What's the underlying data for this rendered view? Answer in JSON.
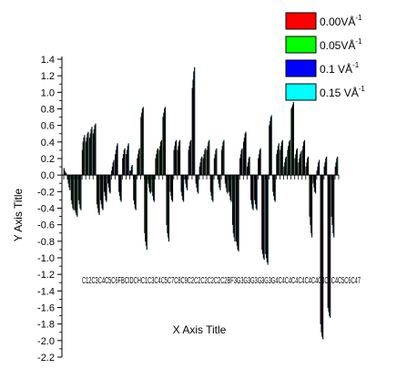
{
  "chart_data": {
    "type": "bar",
    "xlabel": "X Axis Title",
    "ylabel": "Y Axis Title",
    "ylim": [
      -2.2,
      1.4
    ],
    "yticks": [
      1.4,
      1.2,
      1.0,
      0.8,
      0.6,
      0.4,
      0.2,
      0.0,
      -0.2,
      -0.4,
      -0.6,
      -0.8,
      -1.0,
      -1.2,
      -1.4,
      -1.6,
      -1.8,
      -2.0,
      -2.2
    ],
    "x_tick_labels_text": "C12C3C4C5C6FBCIDCHC1C3C4C5C7C8C9C2C2C2C2C2C2BF3G3G3G3G3G3G4C4C4C4C4C4C4C4C4C4C5C6C47",
    "legend_position": "top-right",
    "legend": [
      {
        "name": "0.00VÅ-1",
        "label": "0.00VÅ",
        "sup": "-1",
        "color": "#ff0000"
      },
      {
        "name": "0.05VÅ-1",
        "label": "0.05VÅ",
        "sup": "-1",
        "color": "#00ff00"
      },
      {
        "name": "0.1 VÅ-1",
        "label": "0.1 VÅ",
        "sup": "-1",
        "color": "#0000ff"
      },
      {
        "name": "0.15 VÅ-1",
        "label": "0.15 VÅ",
        "sup": "-1",
        "color": "#00ffff"
      }
    ],
    "categories": [
      "C1",
      "C2",
      "C3",
      "C4",
      "C5",
      "C6",
      "C7",
      "C8",
      "C9",
      "C10",
      "C11",
      "C12",
      "C13",
      "C14",
      "C15",
      "C16",
      "C17",
      "C18",
      "C19",
      "C20",
      "C21",
      "C22",
      "C23",
      "C24",
      "C25",
      "C26",
      "C27",
      "C28",
      "C29",
      "C30",
      "C31",
      "C32",
      "C33",
      "C34",
      "C35",
      "C36",
      "C37",
      "C38",
      "C39",
      "C40",
      "C41",
      "C42",
      "C43",
      "C44",
      "C45",
      "C46",
      "C47",
      "C48",
      "C49",
      "C50",
      "C51",
      "C52",
      "C53",
      "C54",
      "C55",
      "C56",
      "C57",
      "C58",
      "C59",
      "C60",
      "C61",
      "C62",
      "C63",
      "C64",
      "C65",
      "C66",
      "C67",
      "C68",
      "C69",
      "C70",
      "C71",
      "C72",
      "C73",
      "C74",
      "C75"
    ],
    "series": [
      {
        "name": "0.00VÅ-1",
        "color": "#ff0000",
        "values": [
          0.08,
          -0.05,
          -0.3,
          -0.42,
          -0.3,
          0.3,
          0.4,
          0.45,
          0.5,
          -0.35,
          -0.3,
          -0.2,
          -0.1,
          0.05,
          0.25,
          -0.2,
          0.2,
          0.25,
          0.05,
          -0.3,
          0.2,
          0.7,
          -0.7,
          -0.1,
          -0.2,
          0.2,
          0.3,
          0.7,
          -0.6,
          -0.2,
          0.3,
          0.3,
          -0.2,
          -0.05,
          0.3,
          1.05,
          -0.1,
          0.1,
          0.2,
          0.3,
          -0.2,
          0.2,
          -0.05,
          0.3,
          -0.1,
          -0.2,
          -0.6,
          -0.8,
          0.2,
          0.4,
          0.1,
          -0.3,
          -0.3,
          0.2,
          -0.9,
          -0.95,
          0.6,
          -0.2,
          0.25,
          0.3,
          0.1,
          0.3,
          0.8,
          0.2,
          0.15,
          0.3,
          0.1,
          -0.5,
          -0.1,
          0.05,
          -1.8,
          0.1,
          -1.6,
          -0.5,
          0.1
        ]
      },
      {
        "name": "0.05VÅ-1",
        "color": "#00ff00",
        "values": [
          0.05,
          -0.1,
          -0.35,
          -0.45,
          -0.35,
          0.4,
          0.45,
          0.5,
          0.55,
          -0.4,
          -0.35,
          -0.25,
          -0.15,
          0.1,
          0.3,
          -0.25,
          0.25,
          0.3,
          0.05,
          -0.35,
          0.25,
          0.75,
          -0.8,
          -0.15,
          -0.25,
          0.25,
          0.35,
          0.75,
          -0.7,
          -0.25,
          0.35,
          0.35,
          -0.25,
          -0.1,
          0.35,
          1.15,
          -0.15,
          0.15,
          0.25,
          0.35,
          -0.25,
          0.25,
          -0.1,
          0.35,
          -0.15,
          -0.25,
          -0.7,
          -0.85,
          0.25,
          0.45,
          0.15,
          -0.35,
          -0.35,
          0.25,
          -0.95,
          -1.0,
          0.65,
          -0.25,
          0.3,
          0.35,
          0.15,
          0.35,
          0.82,
          0.25,
          0.2,
          0.35,
          0.15,
          -0.6,
          -0.15,
          0.1,
          -1.9,
          0.15,
          -1.65,
          -0.6,
          0.15
        ]
      },
      {
        "name": "0.1 VÅ-1",
        "color": "#0000ff",
        "values": [
          0.03,
          -0.15,
          -0.4,
          -0.48,
          -0.4,
          0.45,
          0.5,
          0.55,
          0.6,
          -0.45,
          -0.4,
          -0.3,
          -0.2,
          0.15,
          0.35,
          -0.3,
          0.3,
          0.35,
          0.1,
          -0.4,
          0.3,
          0.8,
          -0.85,
          -0.2,
          -0.3,
          0.3,
          0.4,
          0.8,
          -0.75,
          -0.3,
          0.4,
          0.4,
          -0.3,
          -0.15,
          0.4,
          1.25,
          -0.2,
          0.2,
          0.3,
          0.4,
          -0.3,
          0.3,
          -0.15,
          0.4,
          -0.2,
          -0.3,
          -0.75,
          -0.9,
          0.3,
          0.5,
          0.2,
          -0.4,
          -0.4,
          0.3,
          -1.0,
          -1.05,
          0.7,
          -0.3,
          0.35,
          0.4,
          0.2,
          0.4,
          0.85,
          0.3,
          0.25,
          0.4,
          0.2,
          -0.7,
          -0.2,
          0.15,
          -1.95,
          0.2,
          -1.7,
          -0.7,
          0.2
        ]
      },
      {
        "name": "0.15 VÅ-1",
        "color": "#00ffff",
        "values": [
          0.02,
          -0.18,
          -0.42,
          -0.5,
          -0.42,
          0.48,
          0.52,
          0.58,
          0.62,
          -0.48,
          -0.42,
          -0.32,
          -0.22,
          0.18,
          0.38,
          -0.32,
          0.32,
          0.38,
          0.12,
          -0.42,
          0.32,
          0.82,
          -0.9,
          -0.22,
          -0.32,
          0.32,
          0.42,
          0.82,
          -0.8,
          -0.32,
          0.42,
          0.42,
          -0.32,
          -0.18,
          0.42,
          1.3,
          -0.22,
          0.22,
          0.32,
          0.42,
          -0.32,
          0.32,
          -0.18,
          0.42,
          -0.22,
          -0.32,
          -0.8,
          -0.92,
          0.32,
          0.52,
          0.22,
          -0.42,
          -0.42,
          0.32,
          -1.02,
          -1.08,
          0.72,
          -0.32,
          0.38,
          0.42,
          0.22,
          0.42,
          0.88,
          0.32,
          0.28,
          0.42,
          0.22,
          -0.75,
          -0.22,
          0.18,
          -1.98,
          0.22,
          -1.72,
          -0.75,
          0.22
        ]
      }
    ]
  }
}
